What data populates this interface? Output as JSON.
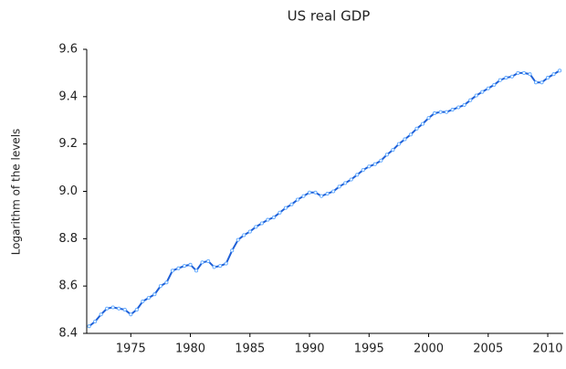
{
  "chart_data": {
    "type": "line",
    "title": "US real GDP",
    "y_label": "Logarithm of the levels",
    "x": [
      1971.5,
      1972,
      1972.5,
      1973,
      1973.5,
      1974,
      1974.5,
      1975,
      1975.5,
      1976,
      1976.5,
      1977,
      1977.5,
      1978,
      1978.5,
      1979,
      1979.5,
      1980,
      1980.5,
      1981,
      1981.5,
      1982,
      1982.5,
      1983,
      1983.5,
      1984,
      1984.5,
      1985,
      1985.5,
      1986,
      1986.5,
      1987,
      1987.5,
      1988,
      1988.5,
      1989,
      1989.5,
      1990,
      1990.5,
      1991,
      1991.5,
      1992,
      1992.5,
      1993,
      1993.5,
      1994,
      1994.5,
      1995,
      1995.5,
      1996,
      1996.5,
      1997,
      1997.5,
      1998,
      1998.5,
      1999,
      1999.5,
      2000,
      2000.5,
      2001,
      2001.5,
      2002,
      2002.5,
      2003,
      2003.5,
      2004,
      2004.5,
      2005,
      2005.5,
      2006,
      2006.5,
      2007,
      2007.5,
      2008,
      2008.5,
      2009,
      2009.5,
      2010,
      2010.5,
      2011
    ],
    "series": [
      {
        "color": "#1f5fd6",
        "values": [
          8.43,
          8.45,
          8.48,
          8.505,
          8.51,
          8.505,
          8.5,
          8.48,
          8.5,
          8.535,
          8.55,
          8.565,
          8.6,
          8.615,
          8.665,
          8.675,
          8.685,
          8.69,
          8.665,
          8.7,
          8.705,
          8.68,
          8.685,
          8.695,
          8.75,
          8.795,
          8.815,
          8.83,
          8.85,
          8.865,
          8.88,
          8.89,
          8.91,
          8.93,
          8.945,
          8.965,
          8.98,
          8.995,
          8.995,
          8.98,
          8.99,
          9.0,
          9.02,
          9.035,
          9.05,
          9.07,
          9.09,
          9.105,
          9.115,
          9.13,
          9.155,
          9.175,
          9.2,
          9.22,
          9.24,
          9.265,
          9.285,
          9.31,
          9.33,
          9.335,
          9.335,
          9.345,
          9.355,
          9.365,
          9.385,
          9.405,
          9.42,
          9.435,
          9.45,
          9.47,
          9.48,
          9.485,
          9.5,
          9.5,
          9.495,
          9.46,
          9.46,
          9.48,
          9.495,
          9.51
        ]
      }
    ],
    "xlim": [
      1971.3,
      2011.3
    ],
    "xticks": [
      1975,
      1980,
      1985,
      1990,
      1995,
      2000,
      2005,
      2010
    ],
    "ylim": [
      8.4,
      9.6
    ],
    "yticks": [
      8.4,
      8.6,
      8.8,
      {
        "value": 9,
        "label": "9.0"
      },
      9.2,
      9.4,
      9.6
    ]
  }
}
